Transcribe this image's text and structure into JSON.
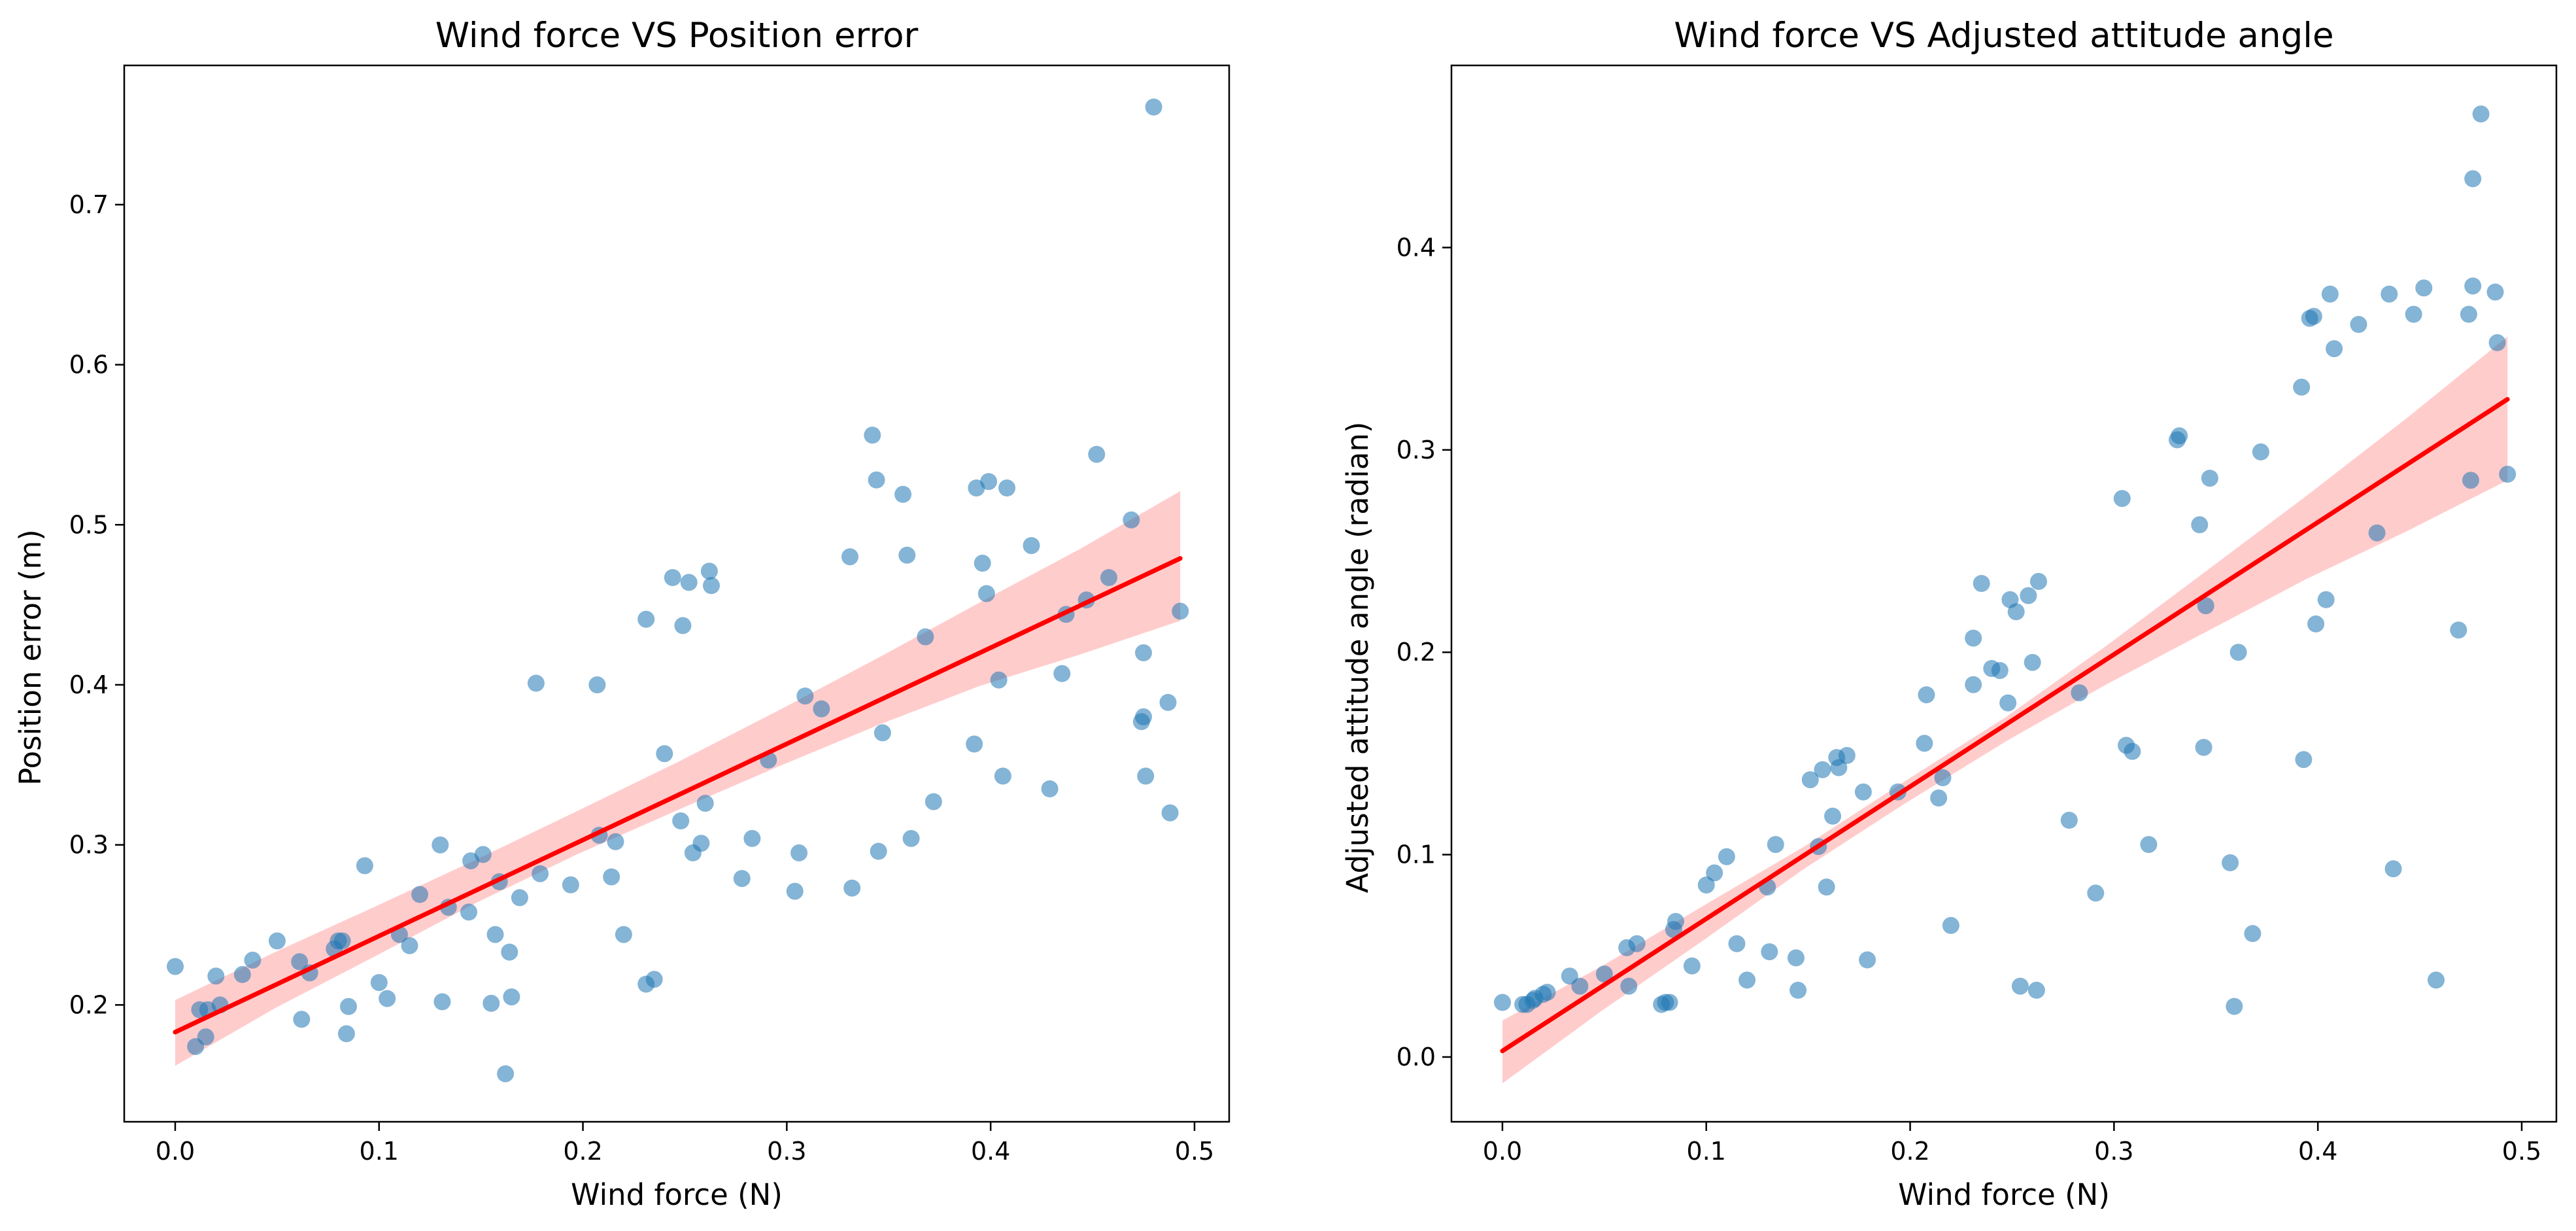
{
  "chart_data": [
    {
      "type": "scatter",
      "title": "Wind force VS Position error",
      "xlabel": "Wind force (N)",
      "ylabel": "Position error (m)",
      "xlim": [
        -0.025,
        0.517
      ],
      "ylim": [
        0.127,
        0.787
      ],
      "xticks": [
        0.0,
        0.1,
        0.2,
        0.3,
        0.4,
        0.5
      ],
      "yticks": [
        0.2,
        0.3,
        0.4,
        0.5,
        0.6,
        0.7
      ],
      "xtick_labels": [
        "0.0",
        "0.1",
        "0.2",
        "0.3",
        "0.4",
        "0.5"
      ],
      "ytick_labels": [
        "0.2",
        "0.3",
        "0.4",
        "0.5",
        "0.6",
        "0.7"
      ],
      "grid": false,
      "legend": false,
      "marker_color": "#1f77b4",
      "marker_alpha": 0.55,
      "fit_color": "#ff0000",
      "band_color": "#ffcccc",
      "points": [
        {
          "x": 0.0,
          "y": 0.224
        },
        {
          "x": 0.01,
          "y": 0.174
        },
        {
          "x": 0.012,
          "y": 0.197
        },
        {
          "x": 0.015,
          "y": 0.18
        },
        {
          "x": 0.016,
          "y": 0.197
        },
        {
          "x": 0.02,
          "y": 0.218
        },
        {
          "x": 0.022,
          "y": 0.2
        },
        {
          "x": 0.033,
          "y": 0.219
        },
        {
          "x": 0.038,
          "y": 0.228
        },
        {
          "x": 0.05,
          "y": 0.24
        },
        {
          "x": 0.061,
          "y": 0.227
        },
        {
          "x": 0.062,
          "y": 0.191
        },
        {
          "x": 0.066,
          "y": 0.22
        },
        {
          "x": 0.078,
          "y": 0.235
        },
        {
          "x": 0.08,
          "y": 0.24
        },
        {
          "x": 0.082,
          "y": 0.24
        },
        {
          "x": 0.084,
          "y": 0.182
        },
        {
          "x": 0.085,
          "y": 0.199
        },
        {
          "x": 0.093,
          "y": 0.287
        },
        {
          "x": 0.1,
          "y": 0.214
        },
        {
          "x": 0.104,
          "y": 0.204
        },
        {
          "x": 0.11,
          "y": 0.244
        },
        {
          "x": 0.115,
          "y": 0.237
        },
        {
          "x": 0.12,
          "y": 0.269
        },
        {
          "x": 0.13,
          "y": 0.3
        },
        {
          "x": 0.131,
          "y": 0.202
        },
        {
          "x": 0.134,
          "y": 0.261
        },
        {
          "x": 0.144,
          "y": 0.258
        },
        {
          "x": 0.145,
          "y": 0.29
        },
        {
          "x": 0.151,
          "y": 0.294
        },
        {
          "x": 0.155,
          "y": 0.201
        },
        {
          "x": 0.157,
          "y": 0.244
        },
        {
          "x": 0.159,
          "y": 0.277
        },
        {
          "x": 0.162,
          "y": 0.157
        },
        {
          "x": 0.164,
          "y": 0.233
        },
        {
          "x": 0.165,
          "y": 0.205
        },
        {
          "x": 0.169,
          "y": 0.267
        },
        {
          "x": 0.177,
          "y": 0.401
        },
        {
          "x": 0.179,
          "y": 0.282
        },
        {
          "x": 0.194,
          "y": 0.275
        },
        {
          "x": 0.207,
          "y": 0.4
        },
        {
          "x": 0.208,
          "y": 0.306
        },
        {
          "x": 0.214,
          "y": 0.28
        },
        {
          "x": 0.216,
          "y": 0.302
        },
        {
          "x": 0.22,
          "y": 0.244
        },
        {
          "x": 0.231,
          "y": 0.441
        },
        {
          "x": 0.231,
          "y": 0.213
        },
        {
          "x": 0.235,
          "y": 0.216
        },
        {
          "x": 0.24,
          "y": 0.357
        },
        {
          "x": 0.244,
          "y": 0.467
        },
        {
          "x": 0.248,
          "y": 0.315
        },
        {
          "x": 0.249,
          "y": 0.437
        },
        {
          "x": 0.252,
          "y": 0.464
        },
        {
          "x": 0.254,
          "y": 0.295
        },
        {
          "x": 0.258,
          "y": 0.301
        },
        {
          "x": 0.26,
          "y": 0.326
        },
        {
          "x": 0.262,
          "y": 0.471
        },
        {
          "x": 0.263,
          "y": 0.462
        },
        {
          "x": 0.278,
          "y": 0.279
        },
        {
          "x": 0.283,
          "y": 0.304
        },
        {
          "x": 0.291,
          "y": 0.353
        },
        {
          "x": 0.304,
          "y": 0.271
        },
        {
          "x": 0.306,
          "y": 0.295
        },
        {
          "x": 0.309,
          "y": 0.393
        },
        {
          "x": 0.317,
          "y": 0.385
        },
        {
          "x": 0.331,
          "y": 0.48
        },
        {
          "x": 0.332,
          "y": 0.273
        },
        {
          "x": 0.342,
          "y": 0.556
        },
        {
          "x": 0.344,
          "y": 0.528
        },
        {
          "x": 0.345,
          "y": 0.296
        },
        {
          "x": 0.347,
          "y": 0.37
        },
        {
          "x": 0.357,
          "y": 0.519
        },
        {
          "x": 0.359,
          "y": 0.481
        },
        {
          "x": 0.361,
          "y": 0.304
        },
        {
          "x": 0.368,
          "y": 0.43
        },
        {
          "x": 0.372,
          "y": 0.327
        },
        {
          "x": 0.392,
          "y": 0.363
        },
        {
          "x": 0.393,
          "y": 0.523
        },
        {
          "x": 0.396,
          "y": 0.476
        },
        {
          "x": 0.398,
          "y": 0.457
        },
        {
          "x": 0.399,
          "y": 0.527
        },
        {
          "x": 0.404,
          "y": 0.403
        },
        {
          "x": 0.406,
          "y": 0.343
        },
        {
          "x": 0.408,
          "y": 0.523
        },
        {
          "x": 0.42,
          "y": 0.487
        },
        {
          "x": 0.429,
          "y": 0.335
        },
        {
          "x": 0.435,
          "y": 0.407
        },
        {
          "x": 0.437,
          "y": 0.444
        },
        {
          "x": 0.447,
          "y": 0.453
        },
        {
          "x": 0.452,
          "y": 0.544
        },
        {
          "x": 0.458,
          "y": 0.467
        },
        {
          "x": 0.469,
          "y": 0.503
        },
        {
          "x": 0.474,
          "y": 0.377
        },
        {
          "x": 0.475,
          "y": 0.38
        },
        {
          "x": 0.475,
          "y": 0.42
        },
        {
          "x": 0.476,
          "y": 0.343
        },
        {
          "x": 0.48,
          "y": 0.761
        },
        {
          "x": 0.487,
          "y": 0.389
        },
        {
          "x": 0.488,
          "y": 0.32
        },
        {
          "x": 0.493,
          "y": 0.446
        }
      ],
      "fit": {
        "x": [
          0.0,
          0.493
        ],
        "y": [
          0.183,
          0.479
        ]
      },
      "band": {
        "x": [
          0.0,
          0.049,
          0.099,
          0.148,
          0.197,
          0.247,
          0.296,
          0.345,
          0.394,
          0.444,
          0.493
        ],
        "lower": [
          0.162,
          0.198,
          0.231,
          0.264,
          0.294,
          0.322,
          0.349,
          0.375,
          0.399,
          0.419,
          0.44
        ],
        "upper": [
          0.203,
          0.233,
          0.262,
          0.291,
          0.321,
          0.352,
          0.384,
          0.417,
          0.451,
          0.485,
          0.521
        ]
      }
    },
    {
      "type": "scatter",
      "title": "Wind force VS Adjusted attitude angle",
      "xlabel": "Wind force (N)",
      "ylabel": "Adjusted attitude angle (radian)",
      "xlim": [
        -0.025,
        0.517
      ],
      "ylim": [
        -0.032,
        0.49
      ],
      "xticks": [
        0.0,
        0.1,
        0.2,
        0.3,
        0.4,
        0.5
      ],
      "yticks": [
        0.0,
        0.1,
        0.2,
        0.3,
        0.4
      ],
      "xtick_labels": [
        "0.0",
        "0.1",
        "0.2",
        "0.3",
        "0.4",
        "0.5"
      ],
      "ytick_labels": [
        "0.0",
        "0.1",
        "0.2",
        "0.3",
        "0.4"
      ],
      "grid": false,
      "legend": false,
      "marker_color": "#1f77b4",
      "marker_alpha": 0.55,
      "fit_color": "#ff0000",
      "band_color": "#ffcccc",
      "points": [
        {
          "x": 0.0,
          "y": 0.027
        },
        {
          "x": 0.01,
          "y": 0.026
        },
        {
          "x": 0.012,
          "y": 0.026
        },
        {
          "x": 0.015,
          "y": 0.028
        },
        {
          "x": 0.016,
          "y": 0.029
        },
        {
          "x": 0.02,
          "y": 0.031
        },
        {
          "x": 0.022,
          "y": 0.032
        },
        {
          "x": 0.033,
          "y": 0.04
        },
        {
          "x": 0.038,
          "y": 0.035
        },
        {
          "x": 0.05,
          "y": 0.041
        },
        {
          "x": 0.061,
          "y": 0.054
        },
        {
          "x": 0.062,
          "y": 0.035
        },
        {
          "x": 0.066,
          "y": 0.056
        },
        {
          "x": 0.078,
          "y": 0.026
        },
        {
          "x": 0.08,
          "y": 0.027
        },
        {
          "x": 0.082,
          "y": 0.027
        },
        {
          "x": 0.084,
          "y": 0.063
        },
        {
          "x": 0.085,
          "y": 0.067
        },
        {
          "x": 0.093,
          "y": 0.045
        },
        {
          "x": 0.1,
          "y": 0.085
        },
        {
          "x": 0.104,
          "y": 0.091
        },
        {
          "x": 0.11,
          "y": 0.099
        },
        {
          "x": 0.115,
          "y": 0.056
        },
        {
          "x": 0.12,
          "y": 0.038
        },
        {
          "x": 0.13,
          "y": 0.084
        },
        {
          "x": 0.131,
          "y": 0.052
        },
        {
          "x": 0.134,
          "y": 0.105
        },
        {
          "x": 0.144,
          "y": 0.049
        },
        {
          "x": 0.145,
          "y": 0.033
        },
        {
          "x": 0.151,
          "y": 0.137
        },
        {
          "x": 0.155,
          "y": 0.104
        },
        {
          "x": 0.157,
          "y": 0.142
        },
        {
          "x": 0.159,
          "y": 0.084
        },
        {
          "x": 0.162,
          "y": 0.119
        },
        {
          "x": 0.164,
          "y": 0.148
        },
        {
          "x": 0.165,
          "y": 0.143
        },
        {
          "x": 0.169,
          "y": 0.149
        },
        {
          "x": 0.177,
          "y": 0.131
        },
        {
          "x": 0.179,
          "y": 0.048
        },
        {
          "x": 0.194,
          "y": 0.131
        },
        {
          "x": 0.207,
          "y": 0.155
        },
        {
          "x": 0.208,
          "y": 0.179
        },
        {
          "x": 0.214,
          "y": 0.128
        },
        {
          "x": 0.216,
          "y": 0.138
        },
        {
          "x": 0.22,
          "y": 0.065
        },
        {
          "x": 0.231,
          "y": 0.184
        },
        {
          "x": 0.231,
          "y": 0.207
        },
        {
          "x": 0.235,
          "y": 0.234
        },
        {
          "x": 0.24,
          "y": 0.192
        },
        {
          "x": 0.244,
          "y": 0.191
        },
        {
          "x": 0.248,
          "y": 0.175
        },
        {
          "x": 0.249,
          "y": 0.226
        },
        {
          "x": 0.252,
          "y": 0.22
        },
        {
          "x": 0.254,
          "y": 0.035
        },
        {
          "x": 0.258,
          "y": 0.228
        },
        {
          "x": 0.26,
          "y": 0.195
        },
        {
          "x": 0.262,
          "y": 0.033
        },
        {
          "x": 0.263,
          "y": 0.235
        },
        {
          "x": 0.278,
          "y": 0.117
        },
        {
          "x": 0.283,
          "y": 0.18
        },
        {
          "x": 0.291,
          "y": 0.081
        },
        {
          "x": 0.304,
          "y": 0.276
        },
        {
          "x": 0.306,
          "y": 0.154
        },
        {
          "x": 0.309,
          "y": 0.151
        },
        {
          "x": 0.317,
          "y": 0.105
        },
        {
          "x": 0.331,
          "y": 0.305
        },
        {
          "x": 0.332,
          "y": 0.307
        },
        {
          "x": 0.342,
          "y": 0.263
        },
        {
          "x": 0.344,
          "y": 0.153
        },
        {
          "x": 0.345,
          "y": 0.223
        },
        {
          "x": 0.347,
          "y": 0.286
        },
        {
          "x": 0.357,
          "y": 0.096
        },
        {
          "x": 0.359,
          "y": 0.025
        },
        {
          "x": 0.361,
          "y": 0.2
        },
        {
          "x": 0.368,
          "y": 0.061
        },
        {
          "x": 0.372,
          "y": 0.299
        },
        {
          "x": 0.392,
          "y": 0.331
        },
        {
          "x": 0.393,
          "y": 0.147
        },
        {
          "x": 0.396,
          "y": 0.365
        },
        {
          "x": 0.398,
          "y": 0.366
        },
        {
          "x": 0.399,
          "y": 0.214
        },
        {
          "x": 0.404,
          "y": 0.226
        },
        {
          "x": 0.406,
          "y": 0.377
        },
        {
          "x": 0.408,
          "y": 0.35
        },
        {
          "x": 0.42,
          "y": 0.362
        },
        {
          "x": 0.429,
          "y": 0.259
        },
        {
          "x": 0.435,
          "y": 0.377
        },
        {
          "x": 0.437,
          "y": 0.093
        },
        {
          "x": 0.447,
          "y": 0.367
        },
        {
          "x": 0.452,
          "y": 0.38
        },
        {
          "x": 0.458,
          "y": 0.038
        },
        {
          "x": 0.469,
          "y": 0.211
        },
        {
          "x": 0.474,
          "y": 0.367
        },
        {
          "x": 0.475,
          "y": 0.285
        },
        {
          "x": 0.476,
          "y": 0.434
        },
        {
          "x": 0.476,
          "y": 0.381
        },
        {
          "x": 0.48,
          "y": 0.466
        },
        {
          "x": 0.487,
          "y": 0.378
        },
        {
          "x": 0.488,
          "y": 0.353
        },
        {
          "x": 0.493,
          "y": 0.288
        }
      ],
      "fit": {
        "x": [
          0.0,
          0.493
        ],
        "y": [
          0.003,
          0.325
        ]
      },
      "band": {
        "x": [
          0.0,
          0.049,
          0.099,
          0.148,
          0.197,
          0.247,
          0.296,
          0.345,
          0.394,
          0.444,
          0.493
        ],
        "lower": [
          -0.013,
          0.023,
          0.058,
          0.093,
          0.125,
          0.156,
          0.184,
          0.21,
          0.236,
          0.26,
          0.285
        ],
        "upper": [
          0.018,
          0.045,
          0.075,
          0.104,
          0.136,
          0.168,
          0.203,
          0.24,
          0.277,
          0.316,
          0.356
        ]
      }
    }
  ]
}
